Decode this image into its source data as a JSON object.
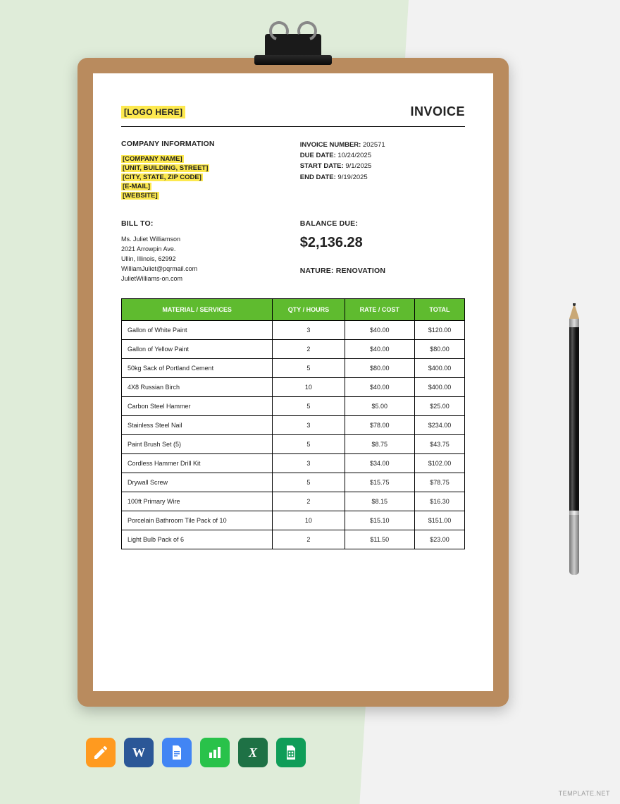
{
  "background": {
    "left_color": "#dfecd9",
    "right_color": "#f2f2f2"
  },
  "clipboard": {
    "color": "#b98b5e"
  },
  "header": {
    "logo_placeholder": "[LOGO HERE]",
    "title": "INVOICE"
  },
  "company_section": {
    "heading": "COMPANY INFORMATION",
    "placeholders": [
      "[COMPANY NAME]",
      "[UNIT, BUILDING, STREET]",
      "[CITY, STATE, ZIP CODE]",
      "[E-MAIL]",
      "[WEBSITE]"
    ]
  },
  "invoice_meta": {
    "lines": [
      {
        "label": "INVOICE NUMBER:",
        "value": "202571"
      },
      {
        "label": "DUE DATE:",
        "value": "10/24/2025"
      },
      {
        "label": "START DATE:",
        "value": "9/1/2025"
      },
      {
        "label": "END DATE:",
        "value": "9/19/2025"
      }
    ]
  },
  "bill_to": {
    "heading": "BILL TO:",
    "lines": [
      "Ms. Juliet Williamson",
      "2021 Arrowpin Ave.",
      "Ullin, Illinois, 62992",
      "WilliamJuliet@pqrmail.com",
      "JulietWilliams-on.com"
    ]
  },
  "balance": {
    "heading": "BALANCE DUE:",
    "amount": "$2,136.28",
    "nature": "NATURE: RENOVATION"
  },
  "table": {
    "header_bg": "#5fbb2f",
    "columns": [
      "MATERIAL / SERVICES",
      "QTY / HOURS",
      "RATE / COST",
      "TOTAL"
    ],
    "rows": [
      [
        "Gallon of White Paint",
        "3",
        "$40.00",
        "$120.00"
      ],
      [
        "Gallon of Yellow Paint",
        "2",
        "$40.00",
        "$80.00"
      ],
      [
        "50kg Sack of Portland Cement",
        "5",
        "$80.00",
        "$400.00"
      ],
      [
        "4X8 Russian Birch",
        "10",
        "$40.00",
        "$400.00"
      ],
      [
        "Carbon Steel Hammer",
        "5",
        "$5.00",
        "$25.00"
      ],
      [
        "Stainless Steel Nail",
        "3",
        "$78.00",
        "$234.00"
      ],
      [
        "Paint Brush Set (5)",
        "5",
        "$8.75",
        "$43.75"
      ],
      [
        "Cordless Hammer Drill Kit",
        "3",
        "$34.00",
        "$102.00"
      ],
      [
        "Drywall Screw",
        "5",
        "$15.75",
        "$78.75"
      ],
      [
        "100ft Primary Wire",
        "2",
        "$8.15",
        "$16.30"
      ],
      [
        "Porcelain Bathroom Tile Pack of 10",
        "10",
        "$15.10",
        "$151.00"
      ],
      [
        "Light Bulb Pack of 6",
        "2",
        "$11.50",
        "$23.00"
      ]
    ]
  },
  "app_icons": [
    {
      "name": "pages-icon",
      "bg": "#ff9a1f",
      "type": "pen"
    },
    {
      "name": "word-icon",
      "bg": "#2b5797",
      "type": "W"
    },
    {
      "name": "gdocs-icon",
      "bg": "#4285f4",
      "type": "doc"
    },
    {
      "name": "numbers-icon",
      "bg": "#29c24a",
      "type": "chart"
    },
    {
      "name": "excel-icon",
      "bg": "#1e7145",
      "type": "X"
    },
    {
      "name": "sheets-icon",
      "bg": "#0f9d58",
      "type": "grid"
    }
  ],
  "watermark": "TEMPLATE.NET"
}
